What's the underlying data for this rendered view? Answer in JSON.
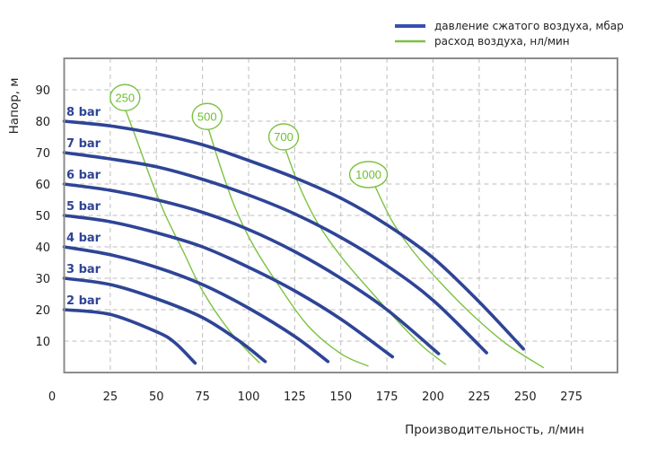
{
  "chart_data": {
    "type": "line",
    "title": "",
    "xlabel": "Производительность, л/мин",
    "ylabel": "Напор, м",
    "xlim": [
      0,
      300
    ],
    "ylim": [
      0,
      100
    ],
    "x_ticks": [
      0,
      25,
      50,
      75,
      100,
      125,
      150,
      175,
      200,
      225,
      250,
      275
    ],
    "y_ticks": [
      10,
      20,
      30,
      40,
      50,
      60,
      70,
      80,
      90
    ],
    "grid": true,
    "legend_position": "top-right",
    "legend": [
      {
        "label": "давление сжатого воздуха, мбар",
        "color": "#2e4496"
      },
      {
        "label": "расход воздуха, нл/мин",
        "color": "#7cc242"
      }
    ],
    "series": [
      {
        "name": "2 bar",
        "group": "pressure",
        "points": [
          [
            0,
            20
          ],
          [
            25,
            18.5
          ],
          [
            50,
            13
          ],
          [
            60,
            9.5
          ],
          [
            71,
            3
          ]
        ]
      },
      {
        "name": "3 bar",
        "group": "pressure",
        "points": [
          [
            0,
            30
          ],
          [
            25,
            28
          ],
          [
            50,
            23.5
          ],
          [
            75,
            17.5
          ],
          [
            95,
            10
          ],
          [
            109,
            3.5
          ]
        ]
      },
      {
        "name": "4 bar",
        "group": "pressure",
        "points": [
          [
            0,
            40
          ],
          [
            25,
            37.5
          ],
          [
            50,
            33.5
          ],
          [
            75,
            28
          ],
          [
            100,
            20.5
          ],
          [
            125,
            11.5
          ],
          [
            143,
            3.5
          ]
        ]
      },
      {
        "name": "5 bar",
        "group": "pressure",
        "points": [
          [
            0,
            50
          ],
          [
            25,
            48
          ],
          [
            50,
            44.5
          ],
          [
            75,
            40
          ],
          [
            100,
            33.5
          ],
          [
            125,
            26
          ],
          [
            150,
            17
          ],
          [
            178,
            5
          ]
        ]
      },
      {
        "name": "6 bar",
        "group": "pressure",
        "points": [
          [
            0,
            60
          ],
          [
            25,
            58
          ],
          [
            50,
            55
          ],
          [
            75,
            51
          ],
          [
            100,
            45.5
          ],
          [
            125,
            38.5
          ],
          [
            150,
            30
          ],
          [
            175,
            20
          ],
          [
            203,
            6
          ]
        ]
      },
      {
        "name": "7 bar",
        "group": "pressure",
        "points": [
          [
            0,
            70
          ],
          [
            25,
            68
          ],
          [
            50,
            65.5
          ],
          [
            75,
            61.5
          ],
          [
            100,
            56.5
          ],
          [
            125,
            50.5
          ],
          [
            150,
            43
          ],
          [
            175,
            34
          ],
          [
            200,
            23
          ],
          [
            229,
            6.3
          ]
        ]
      },
      {
        "name": "8 bar",
        "group": "pressure",
        "points": [
          [
            0,
            80
          ],
          [
            25,
            78.5
          ],
          [
            50,
            76
          ],
          [
            75,
            72.5
          ],
          [
            100,
            67.5
          ],
          [
            125,
            62
          ],
          [
            150,
            55.5
          ],
          [
            175,
            47
          ],
          [
            200,
            36.5
          ],
          [
            225,
            22.5
          ],
          [
            249,
            7.5
          ]
        ]
      },
      {
        "name": "250",
        "group": "air",
        "points": [
          [
            33,
            84
          ],
          [
            40,
            73
          ],
          [
            48,
            60
          ],
          [
            55,
            50
          ],
          [
            65,
            38
          ],
          [
            75,
            26
          ],
          [
            90,
            13
          ],
          [
            106,
            3
          ]
        ]
      },
      {
        "name": "500",
        "group": "air",
        "points": [
          [
            78,
            78
          ],
          [
            85,
            65
          ],
          [
            93,
            52
          ],
          [
            103,
            40
          ],
          [
            116,
            28
          ],
          [
            132,
            15
          ],
          [
            150,
            6
          ],
          [
            165,
            2
          ]
        ]
      },
      {
        "name": "700",
        "group": "air",
        "points": [
          [
            120,
            71
          ],
          [
            127,
            60
          ],
          [
            137,
            48
          ],
          [
            150,
            37
          ],
          [
            166,
            26
          ],
          [
            183,
            15
          ],
          [
            195,
            8
          ],
          [
            207,
            2.5
          ]
        ]
      },
      {
        "name": "1000",
        "group": "air",
        "points": [
          [
            168,
            60
          ],
          [
            178,
            48
          ],
          [
            190,
            38
          ],
          [
            205,
            28
          ],
          [
            222,
            18
          ],
          [
            240,
            9
          ],
          [
            260,
            1.5
          ]
        ]
      }
    ],
    "air_labels": [
      {
        "text": "250",
        "x": 33,
        "y": 87.5
      },
      {
        "text": "500",
        "x": 77.5,
        "y": 81.5
      },
      {
        "text": "700",
        "x": 119,
        "y": 75
      },
      {
        "text": "1000",
        "x": 165,
        "y": 63
      }
    ]
  },
  "legend": {
    "pressure": "давление сжатого воздуха, мбар",
    "air": "расход воздуха, нл/мин"
  },
  "axes": {
    "xlabel": "Производительность, л/мин",
    "ylabel": "Напор, м"
  },
  "colors": {
    "pressure": "#2e4496",
    "air": "#7cc242",
    "grid": "#bdbdbd",
    "frame": "#8c8c8c"
  }
}
